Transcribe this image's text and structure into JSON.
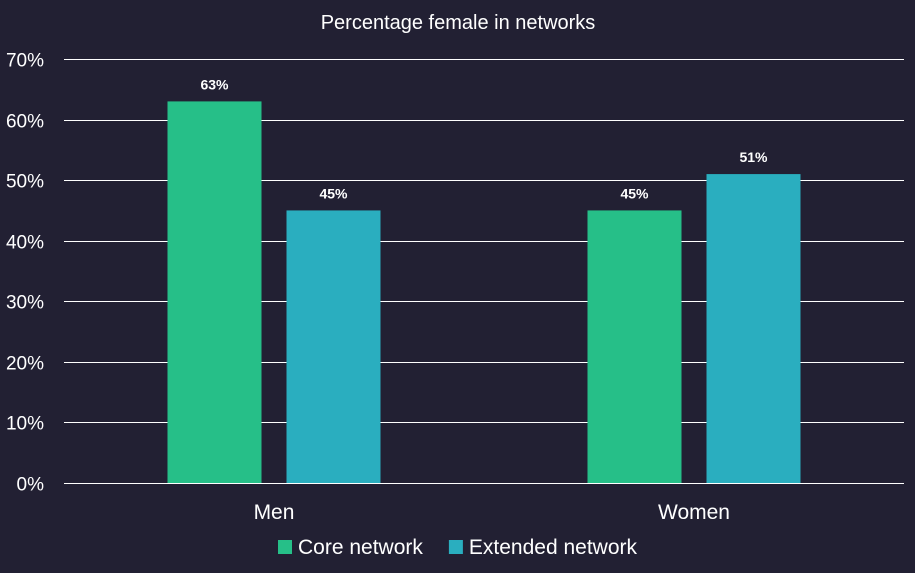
{
  "chart_data": {
    "type": "bar",
    "title": "Percentage female in networks",
    "xlabel": "",
    "ylabel": "",
    "categories": [
      "Men",
      "Women"
    ],
    "series": [
      {
        "name": "Core network",
        "values": [
          63,
          45
        ],
        "labels": [
          "63%",
          "45%"
        ],
        "color": "#26bf88"
      },
      {
        "name": "Extended network",
        "values": [
          45,
          51
        ],
        "labels": [
          "45%",
          "51%"
        ],
        "color": "#2aaebf"
      }
    ],
    "ylim": [
      0,
      70
    ],
    "yticks": [
      0,
      10,
      20,
      30,
      40,
      50,
      60,
      70
    ],
    "ytick_labels": [
      "0%",
      "10%",
      "20%",
      "30%",
      "40%",
      "50%",
      "60%",
      "70%"
    ],
    "grid": true,
    "legend_position": "bottom",
    "colors": {
      "background": "#222033",
      "text": "#ffffff",
      "grid": "#ffffff"
    }
  }
}
